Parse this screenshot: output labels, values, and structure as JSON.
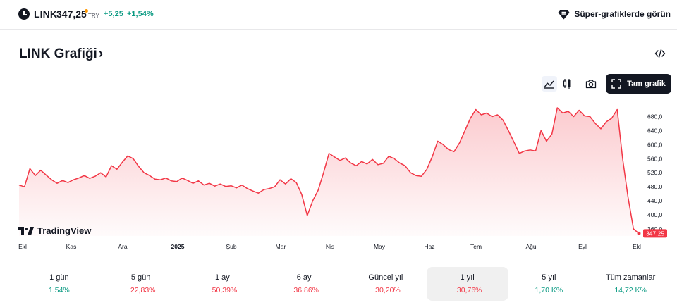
{
  "header": {
    "symbol": "LINK",
    "price": "347,25",
    "currency": "TRY",
    "change": "+5,25",
    "change_percent": "+1,54%",
    "super_charts_label": "Süper-grafiklerde görün"
  },
  "title": "LINK Grafiği",
  "toolbar": {
    "full_chart_label": "Tam grafik"
  },
  "brand": "TradingView",
  "colors": {
    "up": "#089981",
    "down": "#f23645",
    "line": "#f23645",
    "dark": "#131722"
  },
  "chart_data": {
    "type": "area",
    "x_labels": [
      "Ekl",
      "Kas",
      "Ara",
      "2025",
      "Şub",
      "Mar",
      "Nis",
      "May",
      "Haz",
      "Tem",
      "Ağu",
      "Eyl",
      "Ekl"
    ],
    "y_ticks": [
      "680,0",
      "640,0",
      "600,0",
      "560,0",
      "520,0",
      "480,0",
      "440,0",
      "400,0",
      "360,0"
    ],
    "ylim": [
      340,
      715
    ],
    "last_price_label": "347,25",
    "series": [
      {
        "values": [
          485,
          480,
          532,
          512,
          527,
          513,
          500,
          490,
          498,
          492,
          500,
          505,
          512,
          504,
          510,
          520,
          508,
          540,
          530,
          550,
          568,
          560,
          538,
          520,
          512,
          502,
          500,
          505,
          497,
          495,
          505,
          498,
          490,
          497,
          485,
          490,
          482,
          488,
          481,
          483,
          477,
          485,
          475,
          468,
          462,
          472,
          475,
          480,
          500,
          488,
          503,
          492,
          458,
          398,
          440,
          470,
          520,
          575,
          565,
          555,
          562,
          548,
          540,
          552,
          545,
          558,
          543,
          547,
          567,
          560,
          548,
          540,
          520,
          512,
          510,
          530,
          566,
          610,
          600,
          586,
          580,
          605,
          640,
          675,
          700,
          685,
          690,
          680,
          685,
          670,
          640,
          608,
          575,
          582,
          585,
          582,
          640,
          610,
          630,
          705,
          690,
          695,
          680,
          698,
          682,
          680,
          660,
          645,
          665,
          675,
          700,
          560,
          450,
          360,
          347.25
        ]
      }
    ]
  },
  "periods": [
    {
      "label": "1 gün",
      "value": "1,54%",
      "trend": "pos"
    },
    {
      "label": "5 gün",
      "value": "−22,83%",
      "trend": "neg"
    },
    {
      "label": "1 ay",
      "value": "−50,39%",
      "trend": "neg"
    },
    {
      "label": "6 ay",
      "value": "−36,86%",
      "trend": "neg"
    },
    {
      "label": "Güncel yıl",
      "value": "−30,20%",
      "trend": "neg"
    },
    {
      "label": "1 yıl",
      "value": "−30,76%",
      "trend": "neg"
    },
    {
      "label": "5 yıl",
      "value": "1,70 K%",
      "trend": "pos"
    },
    {
      "label": "Tüm zamanlar",
      "value": "14,72 K%",
      "trend": "pos"
    }
  ],
  "active_period": "1 yıl"
}
